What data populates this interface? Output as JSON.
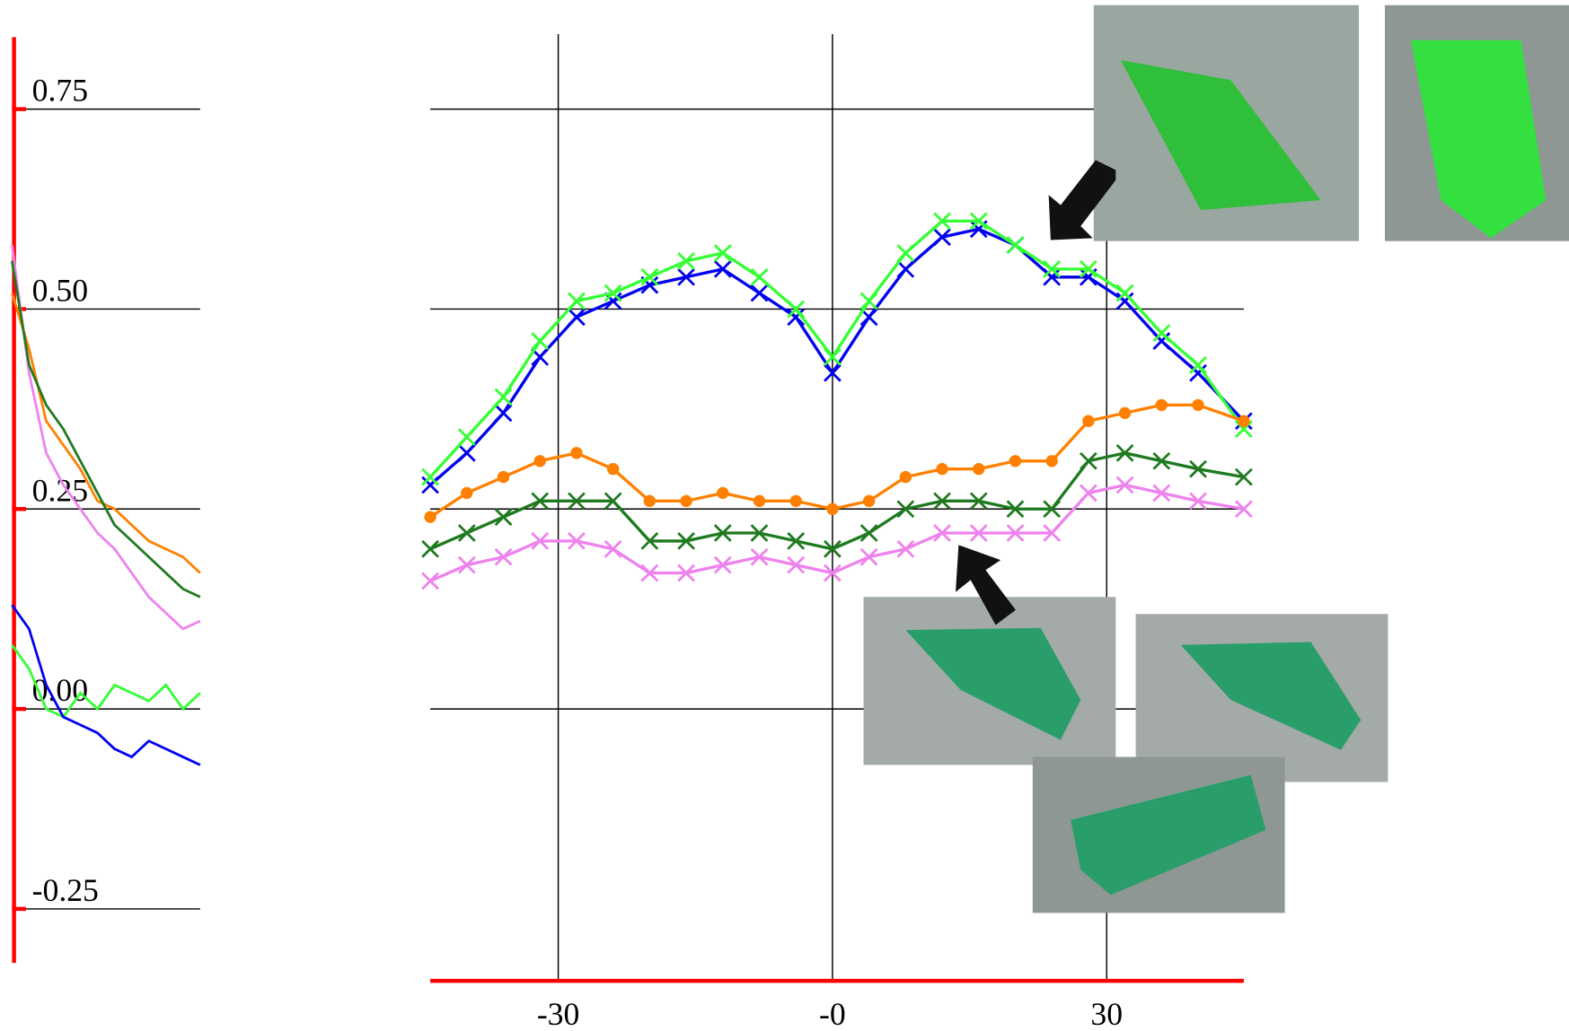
{
  "chart_data": [
    {
      "type": "line",
      "ylim": [
        -0.32,
        0.84
      ],
      "yticks": [
        0.75,
        {
          "value": 0.5,
          "label": "0.50"
        },
        0.25,
        {
          "value": 0,
          "label": "0.00"
        },
        -0.25
      ],
      "series": [
        {
          "color": "#ee82ee",
          "values": [
            0.58,
            0.42,
            0.32,
            0.28,
            0.25,
            0.22,
            0.2,
            0.17,
            0.14,
            0.12,
            0.1,
            0.11
          ]
        },
        {
          "color": "#ff8000",
          "values": [
            0.52,
            0.45,
            0.36,
            0.33,
            0.3,
            0.26,
            0.25,
            0.23,
            0.21,
            0.2,
            0.19,
            0.17
          ]
        },
        {
          "color": "#1f7a1f",
          "values": [
            0.56,
            0.43,
            0.38,
            0.35,
            0.31,
            0.27,
            0.23,
            0.21,
            0.19,
            0.17,
            0.15,
            0.14
          ]
        },
        {
          "color": "#33ff33",
          "values": [
            0.08,
            0.05,
            0.0,
            -0.01,
            0.02,
            0.0,
            0.03,
            0.02,
            0.01,
            0.03,
            0.0,
            0.02
          ]
        },
        {
          "color": "#0000ee",
          "values": [
            0.13,
            0.1,
            0.03,
            -0.01,
            -0.02,
            -0.03,
            -0.05,
            -0.06,
            -0.04,
            -0.05,
            -0.06,
            -0.07
          ]
        }
      ]
    },
    {
      "type": "scatter",
      "xlim": [
        -44,
        45
      ],
      "ylim": [
        -0.32,
        0.84
      ],
      "xticks": [
        -30,
        {
          "value": 0,
          "label": "-0"
        },
        30
      ],
      "yticks": [
        0,
        0.25,
        0.5,
        0.75
      ],
      "x": [
        -44,
        -40,
        -36,
        -32,
        -28,
        -24,
        -20,
        -16,
        -12,
        -8,
        -4,
        0,
        4,
        8,
        12,
        16,
        20,
        24,
        28,
        32,
        36,
        40,
        45
      ],
      "series": [
        {
          "color": "#0000ee",
          "marker": "x",
          "values": [
            0.28,
            0.32,
            0.37,
            0.44,
            0.49,
            0.51,
            0.53,
            0.54,
            0.55,
            0.52,
            0.49,
            0.42,
            0.49,
            0.55,
            0.59,
            0.6,
            0.58,
            0.54,
            0.54,
            0.51,
            0.46,
            0.42,
            0.36
          ]
        },
        {
          "color": "#33ff33",
          "marker": "x",
          "values": [
            0.29,
            0.34,
            0.39,
            0.46,
            0.51,
            0.52,
            0.54,
            0.56,
            0.57,
            0.54,
            0.5,
            0.44,
            0.51,
            0.57,
            0.61,
            0.61,
            0.58,
            0.55,
            0.55,
            0.52,
            0.47,
            0.43,
            0.35
          ]
        },
        {
          "color": "#ff8000",
          "marker": "o",
          "values": [
            0.24,
            0.27,
            0.29,
            0.31,
            0.32,
            0.3,
            0.26,
            0.26,
            0.27,
            0.26,
            0.26,
            0.25,
            0.26,
            0.29,
            0.3,
            0.3,
            0.31,
            0.31,
            0.36,
            0.37,
            0.38,
            0.38,
            0.36
          ]
        },
        {
          "color": "#1f7a1f",
          "marker": "x",
          "values": [
            0.2,
            0.22,
            0.24,
            0.26,
            0.26,
            0.26,
            0.21,
            0.21,
            0.22,
            0.22,
            0.21,
            0.2,
            0.22,
            0.25,
            0.26,
            0.26,
            0.25,
            0.25,
            0.31,
            0.32,
            0.31,
            0.3,
            0.29
          ]
        },
        {
          "color": "#ee82ee",
          "marker": "x",
          "values": [
            0.16,
            0.18,
            0.19,
            0.21,
            0.21,
            0.2,
            0.17,
            0.17,
            0.18,
            0.19,
            0.18,
            0.17,
            0.19,
            0.2,
            0.22,
            0.22,
            0.22,
            0.22,
            0.27,
            0.28,
            0.27,
            0.26,
            0.25
          ]
        }
      ]
    }
  ]
}
